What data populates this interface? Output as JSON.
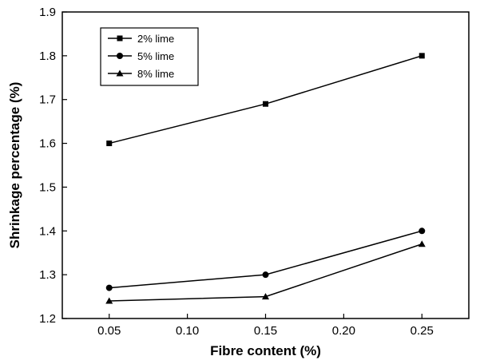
{
  "chart_data": {
    "type": "line",
    "title": "",
    "xlabel": "Fibre content (%)",
    "ylabel": "Shrinkage percentage (%)",
    "x": [
      0.05,
      0.15,
      0.25
    ],
    "xlim": [
      0.02,
      0.28
    ],
    "ylim": [
      1.2,
      1.9
    ],
    "x_ticks": [
      "0.05",
      "0.10",
      "0.15",
      "0.20",
      "0.25"
    ],
    "y_ticks": [
      "1.2",
      "1.3",
      "1.4",
      "1.5",
      "1.6",
      "1.7",
      "1.8",
      "1.9"
    ],
    "grid": false,
    "legend_position": "top-left",
    "series": [
      {
        "name": "2% lime",
        "marker": "square",
        "values": [
          1.6,
          1.69,
          1.8
        ]
      },
      {
        "name": "5% lime",
        "marker": "circle",
        "values": [
          1.27,
          1.3,
          1.4
        ]
      },
      {
        "name": "8% lime",
        "marker": "triangle",
        "values": [
          1.24,
          1.25,
          1.37
        ]
      }
    ],
    "colors": {
      "line": "#000000",
      "background": "#ffffff"
    }
  }
}
